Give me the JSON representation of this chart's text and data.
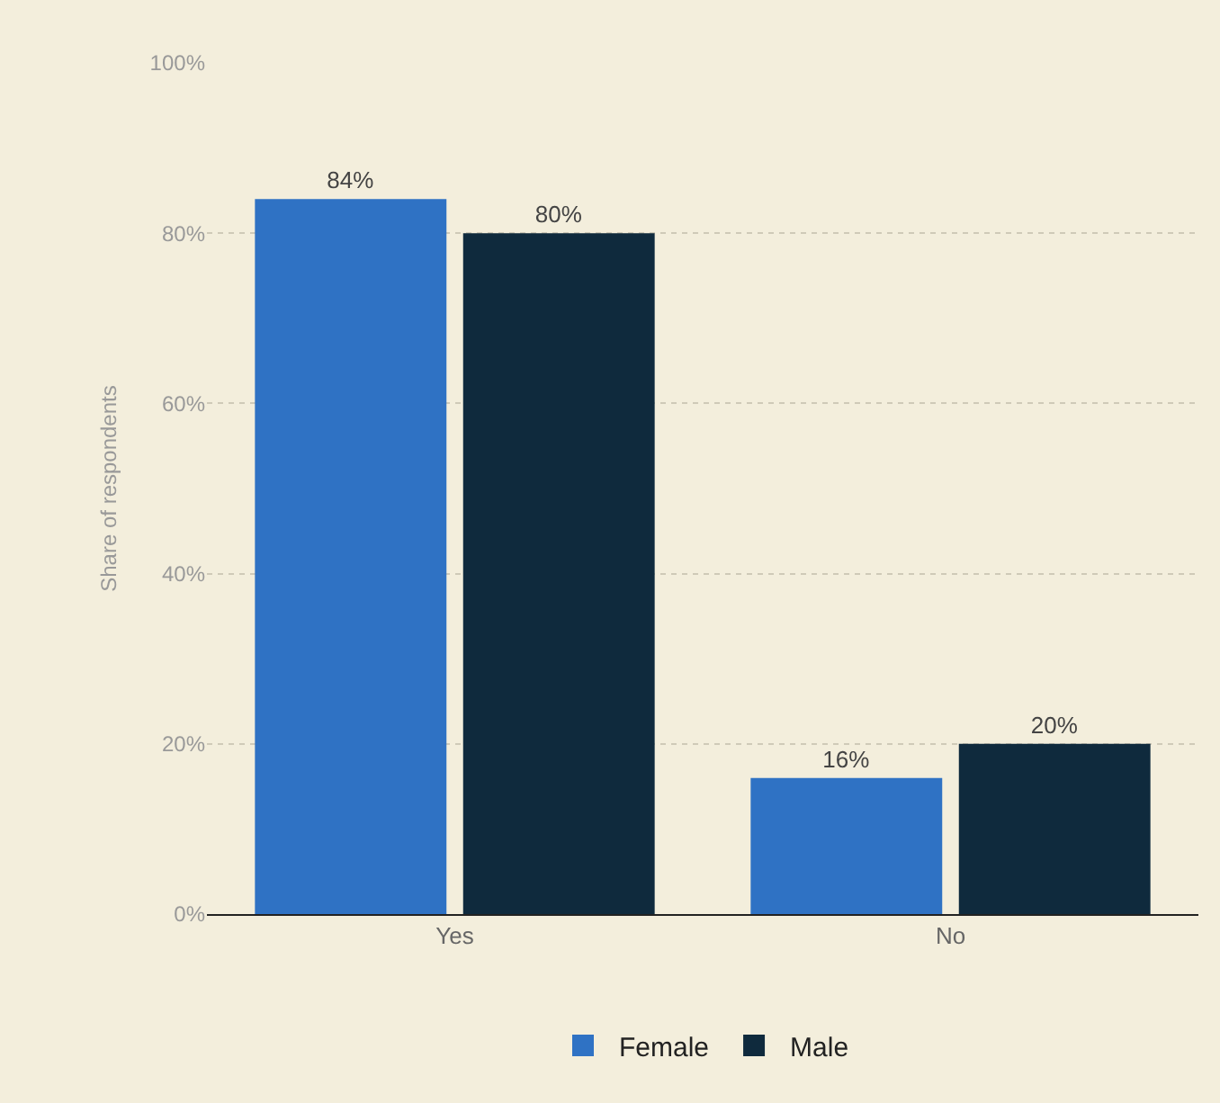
{
  "chart_data": {
    "type": "bar",
    "ylabel": "Share of respondents",
    "categories": [
      "Yes",
      "No"
    ],
    "series": [
      {
        "name": "Female",
        "color": "#2f72c4",
        "values": [
          84,
          16
        ],
        "value_labels": [
          "84%",
          "16%"
        ]
      },
      {
        "name": "Male",
        "color": "#0f2a3d",
        "values": [
          80,
          20
        ],
        "value_labels": [
          "80%",
          "20%"
        ]
      }
    ],
    "ylim": [
      0,
      100
    ],
    "yticks": [
      {
        "value": 0,
        "label": "0%"
      },
      {
        "value": 20,
        "label": "20%"
      },
      {
        "value": 40,
        "label": "40%"
      },
      {
        "value": 60,
        "label": "60%"
      },
      {
        "value": 80,
        "label": "80%"
      },
      {
        "value": 100,
        "label": "100%"
      }
    ],
    "grid": "y",
    "legend": "bottom"
  }
}
